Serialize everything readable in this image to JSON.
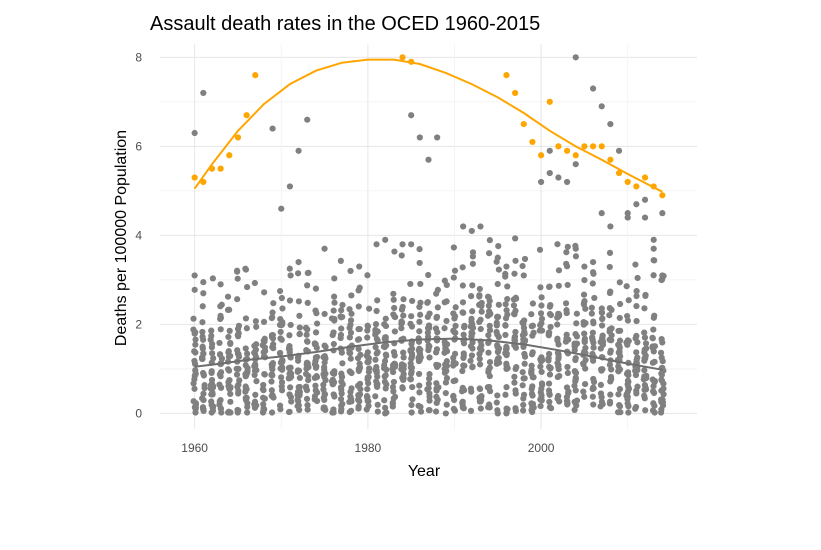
{
  "chart_data": {
    "type": "scatter",
    "title": "Assault death rates in the OCED 1960-2015",
    "xlabel": "Year",
    "ylabel": "Deaths per 100000 Population",
    "xlim": [
      1956,
      2018
    ],
    "ylim": [
      -0.35,
      8.3
    ],
    "x_ticks": [
      1960,
      1980,
      2000
    ],
    "y_ticks": [
      0,
      2,
      4,
      6,
      8
    ],
    "grid": true,
    "legend": "none",
    "colors": {
      "highlight": "#FFA500",
      "others": "#808080"
    },
    "series": [
      {
        "color": "#FFA500",
        "points": [
          [
            1960,
            5.3
          ],
          [
            1961,
            5.2
          ],
          [
            1962,
            5.5
          ],
          [
            1963,
            5.5
          ],
          [
            1964,
            5.8
          ],
          [
            1965,
            6.2
          ],
          [
            1966,
            6.7
          ],
          [
            1967,
            7.6
          ],
          [
            1984,
            8.0
          ],
          [
            1985,
            7.9
          ],
          [
            1996,
            7.6
          ],
          [
            1997,
            7.2
          ],
          [
            1998,
            6.5
          ],
          [
            1999,
            6.1
          ],
          [
            2000,
            5.8
          ],
          [
            2001,
            7.0
          ],
          [
            2002,
            6.0
          ],
          [
            2003,
            5.9
          ],
          [
            2004,
            5.8
          ],
          [
            2005,
            6.0
          ],
          [
            2006,
            6.0
          ],
          [
            2007,
            6.0
          ],
          [
            2008,
            5.7
          ],
          [
            2009,
            5.4
          ],
          [
            2010,
            5.2
          ],
          [
            2011,
            5.1
          ],
          [
            2012,
            5.3
          ],
          [
            2013,
            5.1
          ],
          [
            2014,
            4.9
          ]
        ],
        "trend": [
          [
            1960,
            5.05
          ],
          [
            1962,
            5.6
          ],
          [
            1965,
            6.35
          ],
          [
            1968,
            6.95
          ],
          [
            1971,
            7.4
          ],
          [
            1974,
            7.7
          ],
          [
            1977,
            7.88
          ],
          [
            1980,
            7.95
          ],
          [
            1983,
            7.95
          ],
          [
            1986,
            7.85
          ],
          [
            1989,
            7.65
          ],
          [
            1992,
            7.4
          ],
          [
            1995,
            7.1
          ],
          [
            1998,
            6.75
          ],
          [
            2001,
            6.35
          ],
          [
            2004,
            6.0
          ],
          [
            2007,
            5.7
          ],
          [
            2010,
            5.38
          ],
          [
            2012,
            5.18
          ],
          [
            2014,
            4.98
          ]
        ]
      },
      {
        "color": "#808080",
        "points": [
          [
            1960,
            6.3
          ],
          [
            1961,
            7.2
          ],
          [
            1969,
            6.4
          ],
          [
            1970,
            4.6
          ],
          [
            1971,
            5.1
          ],
          [
            1972,
            5.9
          ],
          [
            1973,
            6.6
          ],
          [
            1985,
            6.7
          ],
          [
            1986,
            6.2
          ],
          [
            1987,
            5.7
          ],
          [
            1988,
            6.2
          ],
          [
            2000,
            5.2
          ],
          [
            2001,
            5.9
          ],
          [
            2001,
            5.4
          ],
          [
            2002,
            5.3
          ],
          [
            2003,
            5.2
          ],
          [
            2004,
            8.0
          ],
          [
            2004,
            5.6
          ],
          [
            2006,
            7.3
          ],
          [
            2007,
            6.9
          ],
          [
            2008,
            6.5
          ],
          [
            2009,
            5.9
          ],
          [
            2010,
            4.5
          ],
          [
            2011,
            4.7
          ],
          [
            2012,
            4.8
          ],
          [
            2012,
            4.4
          ],
          [
            2007,
            4.5
          ],
          [
            2008,
            4.2
          ],
          [
            2005,
            3.3
          ],
          [
            2006,
            3.4
          ],
          [
            2004,
            3.7
          ],
          [
            2014,
            4.5
          ],
          [
            2014,
            3.1
          ],
          [
            2013,
            3.9
          ],
          [
            2013,
            3.7
          ],
          [
            2010,
            4.4
          ],
          [
            1960,
            3.1
          ],
          [
            1961,
            2.7
          ],
          [
            1963,
            2.9
          ],
          [
            1972,
            3.4
          ],
          [
            1975,
            3.7
          ],
          [
            1978,
            3.2
          ],
          [
            1979,
            3.3
          ],
          [
            1981,
            3.8
          ],
          [
            1982,
            3.9
          ],
          [
            1984,
            3.8
          ],
          [
            1985,
            3.8
          ],
          [
            1991,
            4.2
          ],
          [
            1992,
            4.1
          ],
          [
            1993,
            4.2
          ],
          [
            1994,
            3.6
          ],
          [
            1995,
            3.5
          ],
          [
            1996,
            3.3
          ],
          [
            1998,
            3.1
          ],
          [
            1982,
            0.0
          ],
          [
            1989,
            0.0
          ],
          [
            1995,
            0.0
          ],
          [
            1996,
            0.0
          ],
          [
            1993,
            0.3
          ],
          [
            1994,
            0.2
          ]
        ],
        "trend": [
          [
            1960,
            1.05
          ],
          [
            1963,
            1.12
          ],
          [
            1966,
            1.2
          ],
          [
            1970,
            1.28
          ],
          [
            1974,
            1.38
          ],
          [
            1978,
            1.5
          ],
          [
            1982,
            1.6
          ],
          [
            1986,
            1.66
          ],
          [
            1990,
            1.68
          ],
          [
            1994,
            1.64
          ],
          [
            1998,
            1.55
          ],
          [
            2002,
            1.42
          ],
          [
            2006,
            1.27
          ],
          [
            2010,
            1.12
          ],
          [
            2014,
            0.98
          ]
        ],
        "cluster": {
          "x_from": 1960,
          "x_to": 2014,
          "y_mean_by_year": [
            0.9,
            1.0,
            1.05,
            1.1,
            1.2,
            1.3,
            1.45,
            1.55,
            1.6,
            1.55,
            1.45,
            1.2,
            1.0
          ],
          "points_per_year": 26
        }
      }
    ]
  }
}
